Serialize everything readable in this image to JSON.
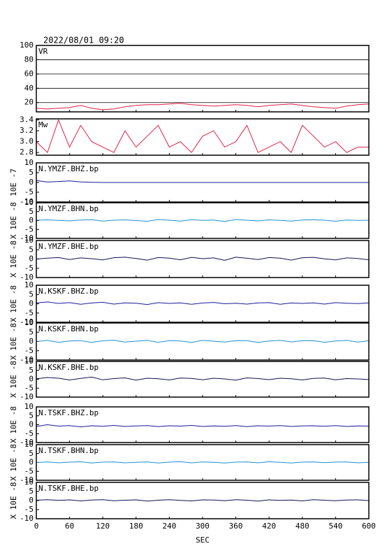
{
  "chart_data": {
    "type": "line",
    "title": "2022/08/01 09:20",
    "xlabel": "SEC",
    "xlim": [
      0,
      600
    ],
    "xticks": [
      0,
      60,
      120,
      180,
      240,
      300,
      360,
      420,
      480,
      540,
      600
    ],
    "x": [
      0,
      20,
      40,
      60,
      80,
      100,
      120,
      140,
      160,
      180,
      200,
      220,
      240,
      260,
      280,
      300,
      320,
      340,
      360,
      380,
      400,
      420,
      440,
      460,
      480,
      500,
      520,
      540,
      560,
      580,
      600
    ],
    "panels": [
      {
        "label": "VR",
        "ylim": [
          7,
          100
        ],
        "yticks": [
          20,
          40,
          60,
          80,
          100
        ],
        "grid": true,
        "color": "#e0204a",
        "values": [
          12,
          11,
          12,
          13,
          16,
          12,
          10,
          11,
          14,
          16,
          17,
          17,
          18,
          19,
          17,
          16,
          15,
          16,
          17,
          16,
          14,
          16,
          17,
          18,
          16,
          14,
          13,
          12,
          15,
          17,
          18
        ]
      },
      {
        "label": "Mw",
        "ylim": [
          2.75,
          3.42
        ],
        "yticks": [
          2.8,
          {
            "value": 3,
            "label": "3.0"
          },
          3.2,
          3.4
        ],
        "grid": false,
        "color": "#e0204a",
        "values": [
          3.0,
          2.8,
          3.4,
          2.9,
          3.3,
          3.0,
          2.9,
          2.8,
          3.2,
          2.9,
          3.1,
          3.3,
          2.9,
          3.0,
          2.8,
          3.1,
          3.2,
          2.9,
          3.0,
          3.3,
          2.8,
          2.9,
          3.0,
          2.8,
          3.3,
          3.1,
          2.9,
          3.0,
          2.8,
          2.9,
          2.9
        ]
      },
      {
        "label": "N.YMZF.BHZ.bp",
        "ylabel": "10E -7",
        "ylim": [
          -10,
          10
        ],
        "yticks": [
          -10,
          -5,
          0,
          5,
          10
        ],
        "grid": false,
        "color": "#1a1a9a",
        "values": [
          1,
          0.2,
          0.5,
          0.8,
          0.3,
          0.1,
          0,
          0,
          0,
          0,
          0,
          0,
          0,
          0,
          0,
          0,
          0,
          0,
          0,
          0,
          0,
          0,
          0,
          0,
          0,
          0,
          0,
          0,
          0,
          0,
          0
        ]
      },
      {
        "label": "N.YMZF.BHN.bp",
        "ylabel": "X 10E -8",
        "ylim": [
          -10,
          10
        ],
        "yticks": [
          -10,
          -5,
          0,
          5,
          10
        ],
        "grid": false,
        "color": "#2090d0",
        "values": [
          0.2,
          0.4,
          0.1,
          -0.2,
          0.3,
          0.5,
          -0.3,
          0.2,
          0.4,
          0,
          -0.4,
          0.6,
          0.2,
          -0.3,
          0.5,
          0.1,
          0.3,
          -0.5,
          0.6,
          0.2,
          -0.2,
          0.4,
          0.1,
          -0.3,
          0.3,
          0.5,
          0.2,
          -0.4,
          0.3,
          0.1,
          0.2
        ]
      },
      {
        "label": "N.YMZF.BHE.bp",
        "ylabel": "X 10E -8",
        "ylim": [
          -10,
          10
        ],
        "yticks": [
          -10,
          -5,
          0,
          5,
          10
        ],
        "grid": false,
        "color": "#101050",
        "values": [
          0,
          0.5,
          0.8,
          -0.3,
          0.6,
          0.2,
          -0.5,
          0.7,
          1,
          0.3,
          -0.6,
          0.8,
          0.5,
          -0.4,
          0.9,
          0.2,
          0.6,
          -0.7,
          1,
          0.4,
          -0.3,
          0.8,
          0.5,
          -0.6,
          0.7,
          0.9,
          0.1,
          -0.5,
          0.6,
          0.3,
          -0.4
        ]
      },
      {
        "label": "N.KSKF.BHZ.bp",
        "ylabel": "X 10E -8",
        "ylim": [
          -10,
          10
        ],
        "yticks": [
          -10,
          -5,
          0,
          5,
          10
        ],
        "grid": false,
        "color": "#1a1a9a",
        "values": [
          0.5,
          1,
          0.2,
          0.6,
          -0.3,
          0.4,
          0.8,
          -0.2,
          0.5,
          0.3,
          -0.4,
          0.6,
          0.2,
          0.5,
          -0.3,
          0.4,
          0.7,
          0,
          0.3,
          -0.2,
          0.5,
          0.6,
          -0.3,
          0.4,
          0.2,
          0.5,
          -0.2,
          0.6,
          0.3,
          0.1,
          0.5
        ]
      },
      {
        "label": "N.KSKF.BHN.bp",
        "ylabel": "X 10E -8",
        "ylim": [
          -10,
          10
        ],
        "yticks": [
          -10,
          -5,
          0,
          5,
          10
        ],
        "grid": false,
        "color": "#2090d0",
        "values": [
          0,
          0.6,
          -0.4,
          0.3,
          0.5,
          -0.5,
          0.4,
          0.7,
          -0.3,
          0.2,
          0.6,
          -0.4,
          0.5,
          0.3,
          -0.5,
          0.6,
          0.2,
          -0.3,
          0.5,
          0.4,
          -0.5,
          0.3,
          0.6,
          -0.2,
          0.4,
          0.5,
          -0.4,
          0.3,
          0.6,
          -0.3,
          0.4
        ]
      },
      {
        "label": "N.KSKF.BHE.bp",
        "ylabel": "X 10E -8",
        "ylim": [
          -10,
          10
        ],
        "yticks": [
          -10,
          -5,
          0,
          5,
          10
        ],
        "grid": false,
        "color": "#101050",
        "values": [
          0.3,
          1,
          0.6,
          -0.4,
          0.5,
          1.2,
          -0.3,
          0.4,
          0.8,
          -0.5,
          0.6,
          0.3,
          -0.4,
          0.7,
          0.5,
          -0.3,
          0.6,
          0.2,
          -0.5,
          0.8,
          0.4,
          -0.2,
          0.6,
          0.3,
          -0.4,
          0.5,
          0.7,
          -0.3,
          0.4,
          0.2,
          -0.2
        ]
      },
      {
        "label": "N.TSKF.BHZ.bp",
        "ylabel": "X 10E -8",
        "ylim": [
          -10,
          10
        ],
        "yticks": [
          -10,
          -5,
          0,
          5,
          10
        ],
        "grid": false,
        "color": "#1a1a9a",
        "values": [
          -1,
          0,
          -0.8,
          -0.5,
          -1.2,
          -0.6,
          -0.9,
          -0.4,
          -1,
          -0.7,
          -0.5,
          -1.1,
          -0.6,
          -0.8,
          -0.4,
          -1,
          -0.7,
          -0.9,
          -0.5,
          -1.1,
          -0.6,
          -0.8,
          -0.5,
          -1,
          -0.7,
          -0.6,
          -0.9,
          -0.5,
          -1,
          -0.7,
          -0.8
        ]
      },
      {
        "label": "N.TSKF.BHN.bp",
        "ylabel": "X 10E -8",
        "ylim": [
          -10,
          10
        ],
        "yticks": [
          -10,
          -5,
          0,
          5,
          10
        ],
        "grid": false,
        "color": "#2090d0",
        "values": [
          0,
          0.3,
          -0.2,
          0.2,
          0.4,
          -0.3,
          0.2,
          0.3,
          -0.2,
          0.1,
          0.3,
          -0.3,
          0.2,
          0.4,
          -0.2,
          0.3,
          0.1,
          -0.3,
          0.2,
          0.3,
          -0.2,
          0.4,
          0.1,
          -0.3,
          0.2,
          0.3,
          -0.1,
          0.2,
          0.3,
          -0.2,
          0.1
        ]
      },
      {
        "label": "N.TSKF.BHE.bp",
        "ylabel": "X 10E -8",
        "ylim": [
          -10,
          10
        ],
        "yticks": [
          -10,
          -5,
          0,
          5,
          10
        ],
        "grid": false,
        "color": "#101050",
        "values": [
          0.2,
          0.5,
          0.1,
          0.4,
          -0.2,
          0.3,
          0.5,
          -0.1,
          0.2,
          0.4,
          -0.3,
          0.2,
          0.5,
          0.1,
          -0.2,
          0.4,
          0.3,
          -0.1,
          0.5,
          0.2,
          -0.3,
          0.4,
          0.1,
          0.3,
          -0.2,
          0.5,
          0.2,
          -0.1,
          0.3,
          0.4,
          0
        ]
      }
    ]
  }
}
